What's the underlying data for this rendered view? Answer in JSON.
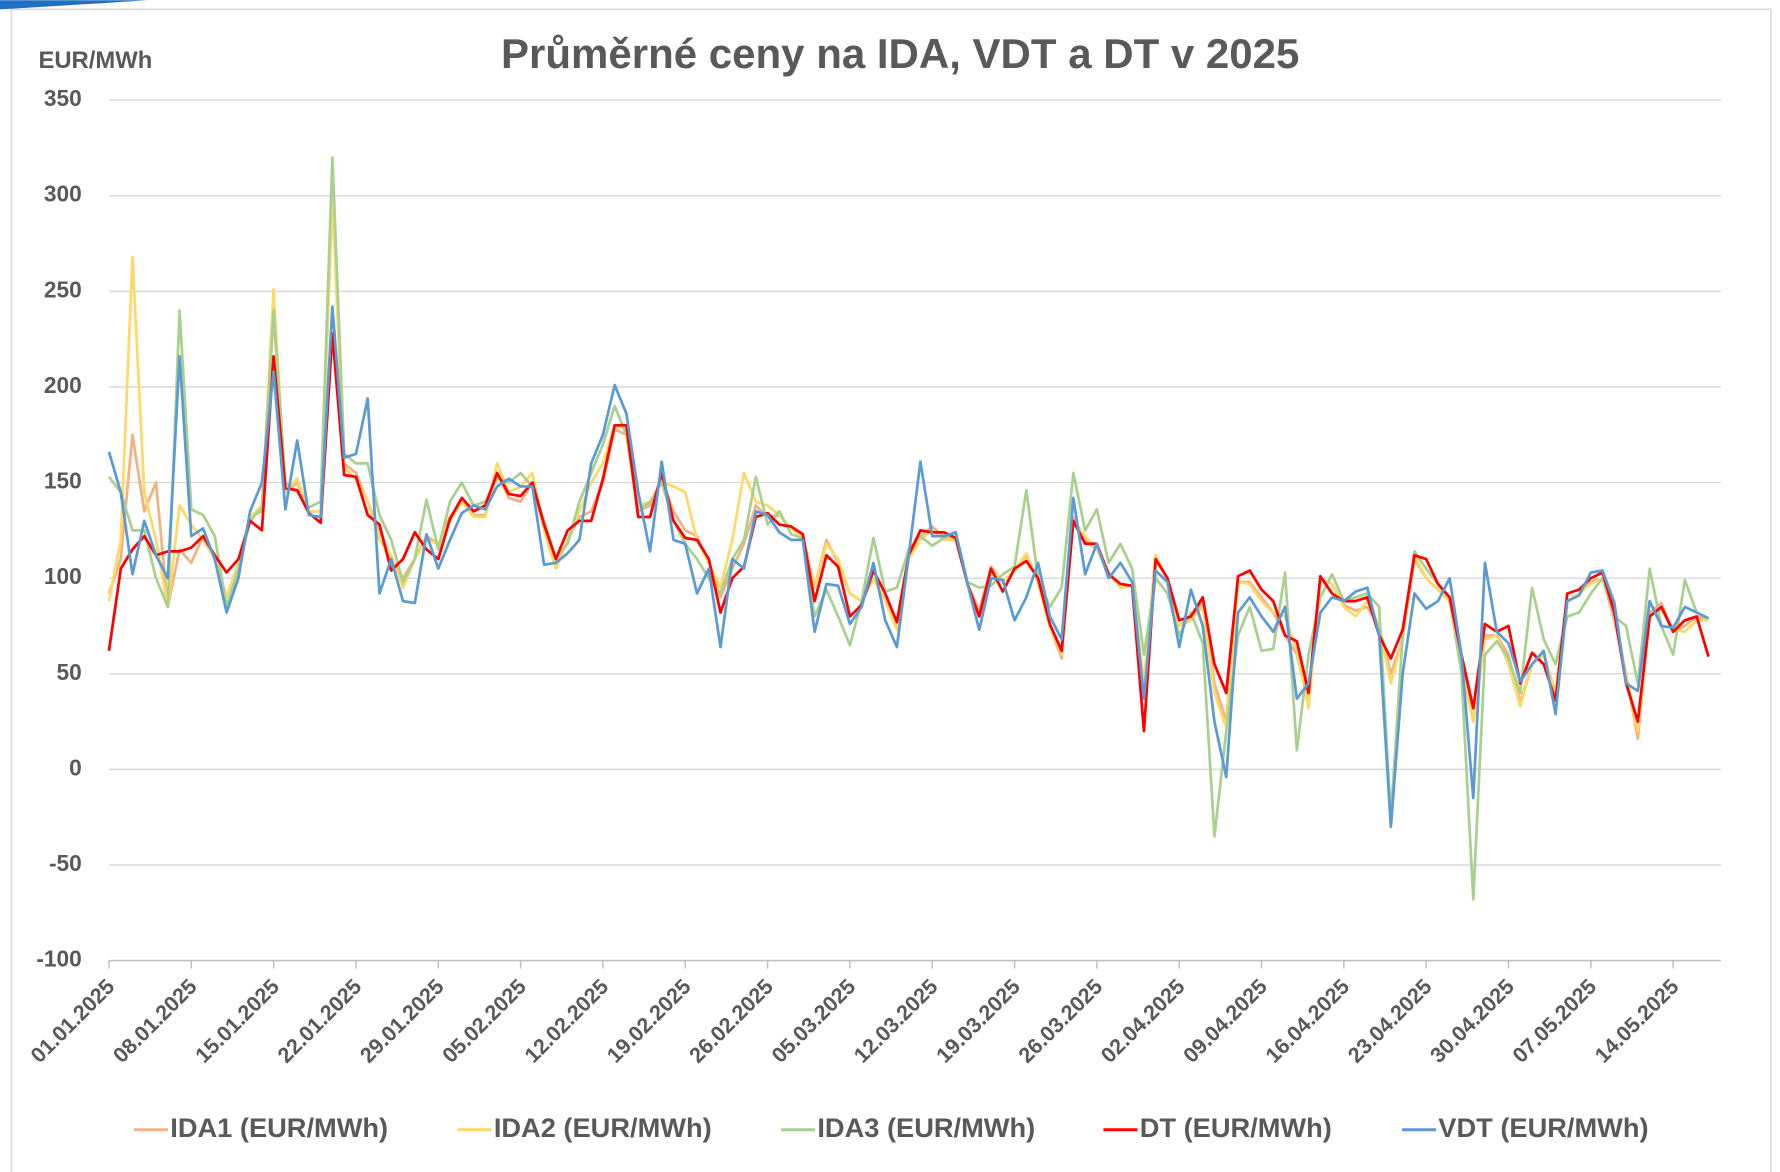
{
  "chart_data": {
    "type": "line",
    "title": "Průměrné ceny na IDA, VDT a DT v 2025",
    "y_axis_label": "EUR/MWh",
    "x": [
      "01.01.2025",
      "02.01.2025",
      "03.01.2025",
      "04.01.2025",
      "05.01.2025",
      "06.01.2025",
      "07.01.2025",
      "08.01.2025",
      "09.01.2025",
      "10.01.2025",
      "11.01.2025",
      "12.01.2025",
      "13.01.2025",
      "14.01.2025",
      "15.01.2025",
      "16.01.2025",
      "17.01.2025",
      "18.01.2025",
      "19.01.2025",
      "20.01.2025",
      "21.01.2025",
      "22.01.2025",
      "23.01.2025",
      "24.01.2025",
      "25.01.2025",
      "26.01.2025",
      "27.01.2025",
      "28.01.2025",
      "29.01.2025",
      "30.01.2025",
      "31.01.2025",
      "01.02.2025",
      "02.02.2025",
      "03.02.2025",
      "04.02.2025",
      "05.02.2025",
      "06.02.2025",
      "07.02.2025",
      "08.02.2025",
      "09.02.2025",
      "10.02.2025",
      "11.02.2025",
      "12.02.2025",
      "13.02.2025",
      "14.02.2025",
      "15.02.2025",
      "16.02.2025",
      "17.02.2025",
      "18.02.2025",
      "19.02.2025",
      "20.02.2025",
      "21.02.2025",
      "22.02.2025",
      "23.02.2025",
      "24.02.2025",
      "25.02.2025",
      "26.02.2025",
      "27.02.2025",
      "28.02.2025",
      "01.03.2025",
      "02.03.2025",
      "03.03.2025",
      "04.03.2025",
      "05.03.2025",
      "06.03.2025",
      "07.03.2025",
      "08.03.2025",
      "09.03.2025",
      "10.03.2025",
      "11.03.2025",
      "12.03.2025",
      "13.03.2025",
      "14.03.2025",
      "15.03.2025",
      "16.03.2025",
      "17.03.2025",
      "18.03.2025",
      "19.03.2025",
      "20.03.2025",
      "21.03.2025",
      "22.03.2025",
      "23.03.2025",
      "24.03.2025",
      "25.03.2025",
      "26.03.2025",
      "27.03.2025",
      "28.03.2025",
      "29.03.2025",
      "30.03.2025",
      "31.03.2025",
      "01.04.2025",
      "02.04.2025",
      "03.04.2025",
      "04.04.2025",
      "05.04.2025",
      "06.04.2025",
      "07.04.2025",
      "08.04.2025",
      "09.04.2025",
      "10.04.2025",
      "11.04.2025",
      "12.04.2025",
      "13.04.2025",
      "14.04.2025",
      "15.04.2025",
      "16.04.2025",
      "17.04.2025",
      "18.04.2025",
      "19.04.2025",
      "20.04.2025",
      "21.04.2025",
      "22.04.2025",
      "23.04.2025",
      "24.04.2025",
      "25.04.2025",
      "26.04.2025",
      "27.04.2025",
      "28.04.2025",
      "29.04.2025",
      "30.04.2025",
      "01.05.2025",
      "02.05.2025",
      "03.05.2025",
      "04.05.2025",
      "05.05.2025",
      "06.05.2025",
      "07.05.2025",
      "08.05.2025",
      "09.05.2025",
      "10.05.2025",
      "11.05.2025",
      "12.05.2025",
      "13.05.2025",
      "14.05.2025",
      "15.05.2025",
      "16.05.2025",
      "17.05.2025"
    ],
    "xticks": [
      "01.01.2025",
      "08.01.2025",
      "15.01.2025",
      "22.01.2025",
      "29.01.2025",
      "05.02.2025",
      "12.02.2025",
      "19.02.2025",
      "26.02.2025",
      "05.03.2025",
      "12.03.2025",
      "19.03.2025",
      "26.03.2025",
      "02.04.2025",
      "09.04.2025",
      "16.04.2025",
      "23.04.2025",
      "30.04.2025",
      "07.05.2025",
      "14.05.2025"
    ],
    "ylim": [
      -100,
      350
    ],
    "yticks": [
      -100,
      -50,
      0,
      50,
      100,
      150,
      200,
      250,
      300,
      350
    ],
    "grid": true,
    "legend": "bottom",
    "series": [
      {
        "name": "IDA1 (EUR/MWh)",
        "color": "#f4b183",
        "values": [
          92,
          110,
          175,
          135,
          150,
          85,
          115,
          108,
          122,
          110,
          90,
          108,
          132,
          135,
          238,
          145,
          150,
          135,
          135,
          300,
          160,
          155,
          140,
          125,
          110,
          100,
          110,
          122,
          118,
          132,
          140,
          133,
          133,
          155,
          142,
          140,
          150,
          125,
          105,
          120,
          132,
          135,
          150,
          178,
          175,
          135,
          138,
          152,
          135,
          125,
          122,
          108,
          90,
          105,
          118,
          138,
          132,
          133,
          126,
          122,
          95,
          120,
          108,
          92,
          88,
          100,
          88,
          78,
          112,
          122,
          127,
          122,
          120,
          97,
          83,
          106,
          98,
          104,
          112,
          98,
          75,
          58,
          132,
          120,
          115,
          103,
          95,
          96,
          45,
          112,
          99,
          75,
          80,
          87,
          45,
          25,
          98,
          98,
          90,
          82,
          70,
          60,
          35,
          100,
          97,
          86,
          83,
          85,
          75,
          50,
          68,
          110,
          100,
          94,
          88,
          55,
          25,
          70,
          70,
          60,
          35,
          55,
          60,
          40,
          88,
          92,
          98,
          100,
          78,
          50,
          16,
          82,
          87,
          72,
          75,
          80,
          78
        ]
      },
      {
        "name": "IDA2 (EUR/MWh)",
        "color": "#ffd966",
        "values": [
          88,
          120,
          268,
          145,
          120,
          85,
          138,
          128,
          120,
          110,
          90,
          108,
          132,
          138,
          251,
          145,
          152,
          135,
          135,
          300,
          158,
          152,
          140,
          120,
          112,
          95,
          110,
          120,
          118,
          130,
          140,
          132,
          132,
          160,
          145,
          148,
          155,
          125,
          105,
          120,
          135,
          150,
          160,
          180,
          178,
          138,
          140,
          150,
          148,
          145,
          120,
          108,
          95,
          120,
          155,
          140,
          138,
          133,
          126,
          122,
          95,
          118,
          110,
          92,
          88,
          100,
          88,
          73,
          110,
          120,
          125,
          120,
          120,
          97,
          80,
          105,
          98,
          104,
          113,
          98,
          75,
          60,
          130,
          122,
          115,
          103,
          95,
          96,
          45,
          112,
          99,
          75,
          78,
          85,
          40,
          22,
          98,
          97,
          88,
          82,
          80,
          62,
          32,
          100,
          97,
          85,
          80,
          88,
          75,
          45,
          68,
          112,
          100,
          94,
          88,
          52,
          25,
          68,
          70,
          55,
          33,
          55,
          60,
          40,
          88,
          92,
          97,
          100,
          80,
          50,
          20,
          80,
          84,
          73,
          72,
          78,
          78
        ]
      },
      {
        "name": "IDA3 (EUR/MWh)",
        "color": "#a9d18e",
        "values": [
          153,
          145,
          125,
          125,
          100,
          85,
          240,
          136,
          133,
          122,
          85,
          105,
          130,
          137,
          240,
          150,
          145,
          137,
          140,
          320,
          165,
          160,
          160,
          133,
          120,
          98,
          110,
          141,
          115,
          140,
          150,
          138,
          140,
          152,
          150,
          155,
          148,
          130,
          110,
          118,
          140,
          155,
          170,
          190,
          175,
          135,
          140,
          150,
          130,
          118,
          110,
          100,
          92,
          110,
          120,
          153,
          128,
          135,
          123,
          121,
          80,
          94,
          80,
          65,
          88,
          121,
          93,
          95,
          115,
          122,
          117,
          121,
          124,
          98,
          95,
          96,
          102,
          106,
          146,
          100,
          85,
          95,
          155,
          125,
          136,
          108,
          118,
          105,
          60,
          100,
          92,
          70,
          82,
          66,
          -35,
          20,
          70,
          85,
          62,
          63,
          103,
          10,
          60,
          90,
          102,
          88,
          90,
          92,
          85,
          -25,
          70,
          114,
          105,
          97,
          90,
          50,
          -68,
          60,
          67,
          58,
          40,
          95,
          68,
          55,
          80,
          82,
          92,
          100,
          80,
          75,
          45,
          105,
          75,
          60,
          99,
          82,
          79
        ]
      },
      {
        "name": "DT (EUR/MWh)",
        "color": "#ff0000",
        "values": [
          62,
          105,
          115,
          122,
          112,
          114,
          114,
          116,
          122,
          112,
          103,
          110,
          130,
          125,
          216,
          147,
          146,
          134,
          129,
          228,
          154,
          153,
          133,
          128,
          104,
          110,
          124,
          115,
          110,
          131,
          142,
          135,
          138,
          155,
          144,
          143,
          150,
          128,
          110,
          125,
          130,
          130,
          152,
          180,
          180,
          132,
          132,
          155,
          130,
          121,
          120,
          110,
          82,
          100,
          106,
          132,
          134,
          128,
          127,
          123,
          88,
          112,
          106,
          80,
          86,
          104,
          92,
          77,
          112,
          125,
          124,
          124,
          121,
          97,
          80,
          105,
          93,
          105,
          109,
          100,
          76,
          62,
          130,
          118,
          118,
          102,
          97,
          96,
          20,
          110,
          100,
          78,
          80,
          90,
          55,
          40,
          101,
          104,
          94,
          88,
          70,
          67,
          40,
          101,
          92,
          88,
          88,
          90,
          70,
          58,
          73,
          112,
          110,
          97,
          90,
          60,
          32,
          76,
          72,
          75,
          45,
          61,
          55,
          36,
          92,
          94,
          100,
          103,
          82,
          45,
          25,
          80,
          85,
          72,
          78,
          80,
          59
        ]
      },
      {
        "name": "VDT (EUR/MWh)",
        "color": "#5b9bd5",
        "values": [
          166,
          145,
          102,
          130,
          112,
          100,
          216,
          122,
          126,
          110,
          82,
          100,
          135,
          150,
          208,
          136,
          172,
          133,
          132,
          242,
          163,
          165,
          194,
          92,
          110,
          88,
          87,
          123,
          105,
          120,
          134,
          138,
          136,
          148,
          152,
          148,
          148,
          107,
          108,
          113,
          120,
          160,
          175,
          201,
          186,
          145,
          114,
          161,
          120,
          118,
          92,
          105,
          64,
          110,
          105,
          135,
          133,
          124,
          120,
          120,
          72,
          97,
          96,
          76,
          85,
          108,
          78,
          64,
          112,
          161,
          122,
          122,
          124,
          97,
          73,
          100,
          99,
          78,
          90,
          108,
          80,
          68,
          142,
          102,
          118,
          100,
          108,
          98,
          37,
          104,
          98,
          64,
          94,
          75,
          25,
          -4,
          82,
          90,
          80,
          72,
          85,
          37,
          45,
          82,
          90,
          88,
          93,
          95,
          70,
          -30,
          50,
          92,
          84,
          88,
          100,
          60,
          -15,
          108,
          72,
          66,
          46,
          55,
          62,
          29,
          88,
          91,
          103,
          104,
          87,
          45,
          41,
          88,
          75,
          74,
          85,
          82,
          79
        ]
      }
    ]
  }
}
